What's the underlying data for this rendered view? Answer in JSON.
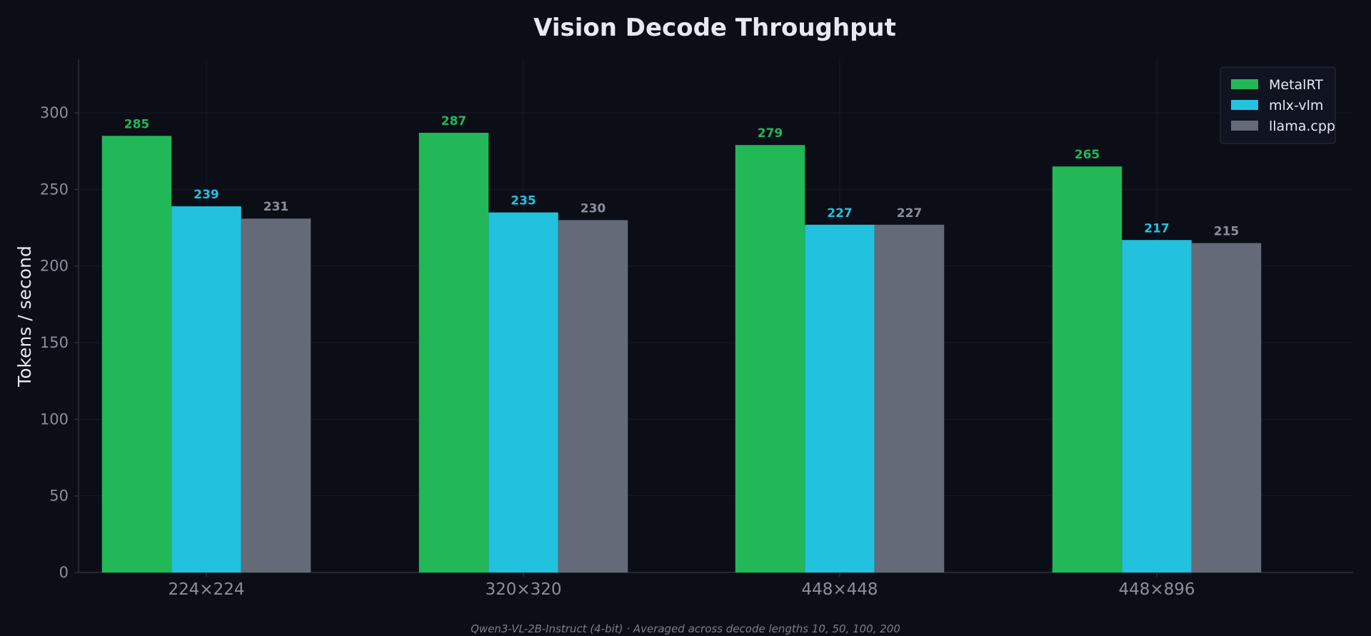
{
  "chart_data": {
    "type": "bar",
    "title": "Vision Decode Throughput",
    "xlabel": "",
    "ylabel": "Tokens / second",
    "categories": [
      "224×224",
      "320×320",
      "448×448",
      "448×896"
    ],
    "series": [
      {
        "name": "MetalRT",
        "values": [
          285,
          287,
          279,
          265
        ],
        "color": "#22b757"
      },
      {
        "name": "mlx-vlm",
        "values": [
          239,
          235,
          227,
          217
        ],
        "color": "#22c2de"
      },
      {
        "name": "llama.cpp",
        "values": [
          231,
          230,
          227,
          215
        ],
        "color": "#646a78"
      }
    ],
    "value_label_colors": [
      "#22b757",
      "#22c2de",
      "#8a8f9c"
    ],
    "ylim": [
      0,
      335
    ],
    "yticks": [
      0,
      50,
      100,
      150,
      200,
      250,
      300
    ],
    "grid": true,
    "legend_position": "top-right",
    "footnote": "Qwen3-VL-2B-Instruct (4-bit) · Averaged across decode lengths 10, 50, 100, 200"
  },
  "colors": {
    "background": "#0b0e17",
    "grid": "#161b26",
    "axis": "#2a303c",
    "legend_bg": "#0f1420",
    "legend_border": "#2a303c"
  }
}
